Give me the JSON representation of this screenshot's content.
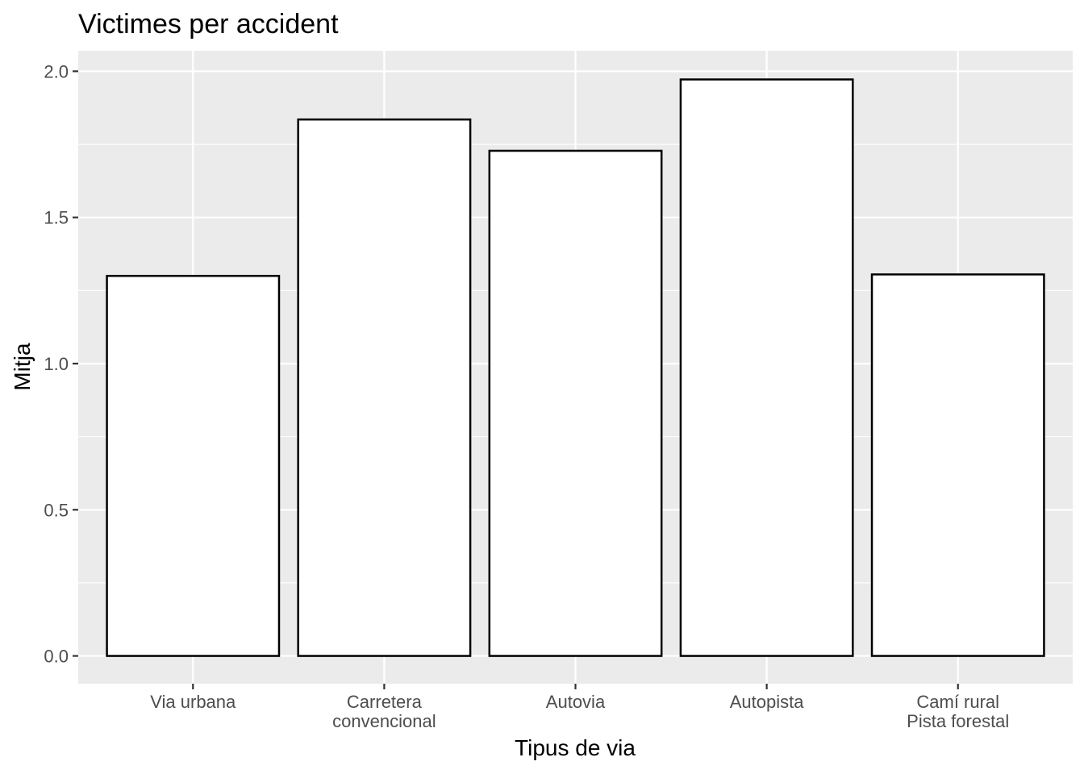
{
  "chart_data": {
    "type": "bar",
    "title": "Victimes per accident",
    "xlabel": "Tipus de via",
    "ylabel": "Mitja",
    "categories": [
      [
        "Via urbana"
      ],
      [
        "Carretera",
        "convencional"
      ],
      [
        "Autovia"
      ],
      [
        "Autopista"
      ],
      [
        "Camí rural",
        "Pista forestal"
      ]
    ],
    "values": [
      1.3,
      1.835,
      1.728,
      1.972,
      1.305
    ],
    "ylim": [
      -0.095,
      2.07
    ],
    "yticks": [
      0.0,
      0.5,
      1.0,
      1.5,
      2.0
    ],
    "ytick_labels": [
      "0.0",
      "0.5",
      "1.0",
      "1.5",
      "2.0"
    ],
    "grid": true,
    "legend": "none",
    "colors": {
      "panel": "#ebebeb",
      "bar_fill": "#ffffff",
      "bar_stroke": "#000000",
      "grid": "#ffffff"
    }
  }
}
